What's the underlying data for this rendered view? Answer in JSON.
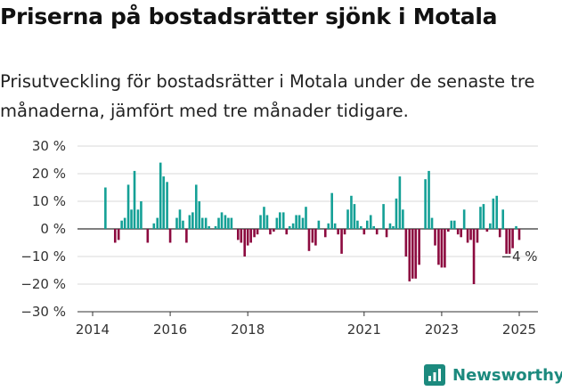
{
  "title": "Priserna på bostadsrätter sjönk i Motala",
  "subtitle": "Prisutveckling för bostadsrätter i Motala under de senaste tre månaderna, jämfört med tre månader tidigare.",
  "brand": {
    "name": "Newsworthy",
    "icon": "newsworthy-logo-icon"
  },
  "colors": {
    "positive": "#14a096",
    "negative": "#8c0a3f",
    "grid": "#d9d9d9",
    "axis": "#333333"
  },
  "chart_data": {
    "type": "bar",
    "ylim": [
      -30,
      30
    ],
    "y_ticks": [
      30,
      20,
      10,
      0,
      -10,
      -20,
      -30
    ],
    "y_tick_labels": [
      "30 %",
      "20 %",
      "10 %",
      "0 %",
      "−10 %",
      "−20 %",
      "−30 %"
    ],
    "x_ticks": [
      2014,
      2016,
      2018,
      2021,
      2023,
      2025
    ],
    "x_tick_labels": [
      "2014",
      "2016",
      "2018",
      "2021",
      "2023",
      "2025"
    ],
    "annotation": "−4 %",
    "x": [
      2014.33,
      2014.58,
      2014.67,
      2014.75,
      2014.83,
      2014.92,
      2015.0,
      2015.08,
      2015.17,
      2015.25,
      2015.33,
      2015.42,
      2015.58,
      2015.67,
      2015.75,
      2015.83,
      2015.92,
      2016.0,
      2016.08,
      2016.17,
      2016.25,
      2016.33,
      2016.42,
      2016.5,
      2016.58,
      2016.67,
      2016.75,
      2016.83,
      2016.92,
      2017.0,
      2017.08,
      2017.17,
      2017.25,
      2017.33,
      2017.42,
      2017.5,
      2017.58,
      2017.67,
      2017.75,
      2017.83,
      2017.92,
      2018.0,
      2018.08,
      2018.17,
      2018.25,
      2018.33,
      2018.42,
      2018.5,
      2018.58,
      2018.67,
      2018.75,
      2018.83,
      2018.92,
      2019.0,
      2019.08,
      2019.17,
      2019.25,
      2019.33,
      2019.42,
      2019.5,
      2019.58,
      2019.67,
      2019.75,
      2019.83,
      2019.92,
      2020.0,
      2020.08,
      2020.17,
      2020.25,
      2020.33,
      2020.42,
      2020.5,
      2020.58,
      2020.67,
      2020.75,
      2020.83,
      2020.92,
      2021.0,
      2021.08,
      2021.17,
      2021.25,
      2021.33,
      2021.42,
      2021.5,
      2021.58,
      2021.67,
      2021.75,
      2021.83,
      2021.92,
      2022.0,
      2022.08,
      2022.17,
      2022.25,
      2022.33,
      2022.42,
      2022.5,
      2022.58,
      2022.67,
      2022.75,
      2022.83,
      2022.92,
      2023.0,
      2023.08,
      2023.17,
      2023.25,
      2023.33,
      2023.42,
      2023.5,
      2023.58,
      2023.67,
      2023.75,
      2023.83,
      2023.92,
      2024.0,
      2024.08,
      2024.17,
      2024.25,
      2024.33,
      2024.42,
      2024.5,
      2024.58,
      2024.67,
      2024.75,
      2024.83,
      2024.92,
      2025.0
    ],
    "values": [
      15,
      -5,
      -4,
      3,
      4,
      16,
      7,
      21,
      7,
      10,
      0,
      -5,
      2,
      4,
      24,
      19,
      17,
      -5,
      0,
      4,
      7,
      3,
      -5,
      5,
      6,
      16,
      10,
      4,
      4,
      1,
      0,
      1,
      4,
      6,
      5,
      4,
      4,
      0,
      -4,
      -5,
      -10,
      -6,
      -5,
      -3,
      -2,
      5,
      8,
      5,
      -2,
      -1,
      4,
      6,
      6,
      -2,
      1,
      2,
      5,
      5,
      4,
      8,
      -8,
      -5,
      -6,
      3,
      0,
      -3,
      2,
      13,
      2,
      -2,
      -9,
      -2,
      7,
      12,
      9,
      3,
      1,
      -2,
      3,
      5,
      1,
      -2,
      0,
      9,
      -3,
      2,
      1,
      11,
      19,
      7,
      -10,
      -19,
      -18,
      -18,
      -13,
      0,
      18,
      21,
      4,
      -6,
      -13,
      -14,
      -14,
      -1,
      3,
      3,
      -2,
      -3,
      7,
      -5,
      -4,
      -20,
      -5,
      8,
      9,
      -1,
      2,
      11,
      12,
      -3,
      7,
      -9,
      -9,
      -7,
      1,
      -4
    ]
  }
}
